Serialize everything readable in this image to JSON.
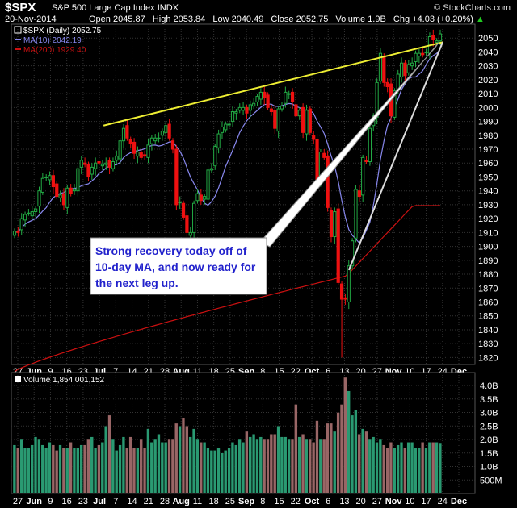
{
  "header": {
    "symbol": "$SPX",
    "name": "S&P 500 Large Cap Index",
    "exchange": "INDX",
    "brand": "© StockCharts.com",
    "date": "20-Nov-2014",
    "open_label": "Open",
    "open": "2045.87",
    "high_label": "High",
    "high": "2053.84",
    "low_label": "Low",
    "low": "2040.49",
    "close_label": "Close",
    "close": "2052.75",
    "volume_label": "Volume",
    "volume": "1.9B",
    "chg_label": "Chg",
    "chg": "+4.03 (+0.20%)",
    "chg_arrow": "▲"
  },
  "legend": {
    "price": "$SPX (Daily) 2052.75",
    "ma10": "MA(10) 2042.19",
    "ma200": "MA(200) 1929.40",
    "volume": "Volume 1,854,001,152"
  },
  "annotation": {
    "lines": [
      "Strong recovery today off of",
      "10-day MA, and now ready for",
      "the next leg up."
    ]
  },
  "colors": {
    "up": "#22aa44",
    "down": "#ee1111",
    "ma10": "#8888ee",
    "ma200": "#cc1111",
    "trendline": "#eeee33",
    "arrow": "#ffffff",
    "grid": "#333333",
    "vol_up": "#2a9a72",
    "vol_down": "#996666",
    "annotation_text": "#2222cc"
  },
  "chart_data": [
    {
      "type": "candlestick",
      "title": "$SPX (Daily) 2052.75",
      "ylim": [
        1815,
        2060
      ],
      "yticks": [
        1820,
        1830,
        1840,
        1850,
        1860,
        1870,
        1880,
        1890,
        1900,
        1910,
        1920,
        1930,
        1940,
        1950,
        1960,
        1970,
        1980,
        1990,
        2000,
        2010,
        2020,
        2030,
        2040,
        2050
      ],
      "xtick_labels": [
        "27",
        "Jun",
        "9",
        "16",
        "23",
        "Jul",
        "7",
        "14",
        "21",
        "28",
        "Aug",
        "11",
        "18",
        "25",
        "Sep",
        "8",
        "15",
        "22",
        "Oct",
        "6",
        "13",
        "20",
        "27",
        "Nov",
        "10",
        "17",
        "24",
        "Dec"
      ],
      "date_range": [
        "2014-05-27",
        "2014-11-20"
      ],
      "closes": [
        1911,
        1910,
        1920,
        1923,
        1924,
        1925,
        1927,
        1940,
        1949,
        1950,
        1951,
        1943,
        1936,
        1937,
        1930,
        1942,
        1938,
        1941,
        1956,
        1962,
        1959,
        1950,
        1957,
        1960,
        1960,
        1959,
        1960,
        1957,
        1961,
        1965,
        1976,
        1985,
        1978,
        1974,
        1967,
        1968,
        1964,
        1965,
        1973,
        1978,
        1978,
        1978,
        1983,
        1987,
        1978,
        1970,
        1930,
        1932,
        1921,
        1910,
        1910,
        1931,
        1938,
        1933,
        1936,
        1955,
        1956,
        1972,
        1981,
        1986,
        1988,
        1988,
        1997,
        1997,
        2000,
        2000,
        1996,
        2002,
        2003,
        2008,
        2011,
        2007,
        2000,
        1997,
        1985,
        1999,
        2001,
        2011,
        2010,
        2004,
        1994,
        1998,
        1982,
        1998,
        1982,
        1977,
        1946,
        1968,
        1964,
        1928,
        1907,
        1925,
        1874,
        1862,
        1862,
        1886,
        1904,
        1941,
        1936,
        1964,
        1961,
        1985,
        1994,
        2018,
        2039,
        2018,
        2015,
        1994,
        2012,
        2024,
        2032,
        2023,
        2031,
        2032,
        2039,
        2039,
        2038,
        2040,
        2051,
        2049,
        2048,
        2053
      ],
      "highs_lows_note": "wicks estimated",
      "ma10_end": 2042.19,
      "ma200_end": 1929.4,
      "trendlines": [
        {
          "from": [
            "2014-07-03",
            1987
          ],
          "to": [
            "2014-11-21",
            2047
          ]
        },
        {
          "from": [
            "2014-10-13",
            1883
          ],
          "to": [
            "2014-11-21",
            2047
          ]
        }
      ]
    },
    {
      "type": "bar",
      "title": "Volume 1,854,001,152",
      "ylim": [
        0,
        4.3
      ],
      "ytick_labels": [
        "4.0B",
        "3.5B",
        "3.0B",
        "2.5B",
        "2.0B",
        "1.5B",
        "1.0B",
        "500M"
      ],
      "yticks": [
        4.0,
        3.5,
        3.0,
        2.5,
        2.0,
        1.5,
        1.0,
        0.5
      ],
      "values": [
        1.8,
        1.7,
        2.0,
        1.7,
        1.7,
        1.8,
        2.1,
        2.0,
        1.8,
        1.7,
        1.9,
        1.8,
        1.6,
        1.8,
        1.7,
        1.7,
        1.9,
        1.7,
        1.7,
        1.8,
        1.8,
        2.0,
        2.1,
        1.7,
        1.8,
        1.9,
        2.5,
        2.9,
        2.0,
        1.6,
        1.8,
        2.1,
        1.7,
        2.1,
        1.7,
        1.7,
        2.0,
        1.7,
        2.4,
        1.9,
        2.0,
        2.2,
        1.9,
        1.9,
        2.0,
        2.0,
        2.6,
        2.5,
        2.8,
        2.5,
        2.1,
        2.4,
        2.0,
        1.9,
        1.9,
        1.7,
        1.6,
        1.6,
        1.7,
        1.5,
        1.6,
        1.7,
        1.9,
        1.8,
        2.0,
        1.9,
        2.3,
        2.1,
        2.2,
        2.0,
        2.1,
        2.0,
        2.0,
        2.2,
        2.2,
        2.5,
        2.1,
        2.1,
        2.0,
        2.0,
        3.3,
        2.1,
        2.2,
        2.0,
        2.0,
        1.9,
        2.7,
        2.0,
        2.0,
        2.6,
        2.6,
        2.3,
        3.0,
        3.3,
        4.3,
        3.8,
        2.9,
        3.1,
        2.2,
        2.4,
        2.3,
        2.0,
        2.1,
        1.9,
        2.0,
        1.8,
        1.7,
        1.9,
        1.7,
        1.8,
        1.9,
        1.7,
        1.9,
        1.9,
        1.7,
        1.7,
        1.9,
        1.7,
        1.9,
        1.9,
        1.9,
        1.85
      ]
    }
  ]
}
